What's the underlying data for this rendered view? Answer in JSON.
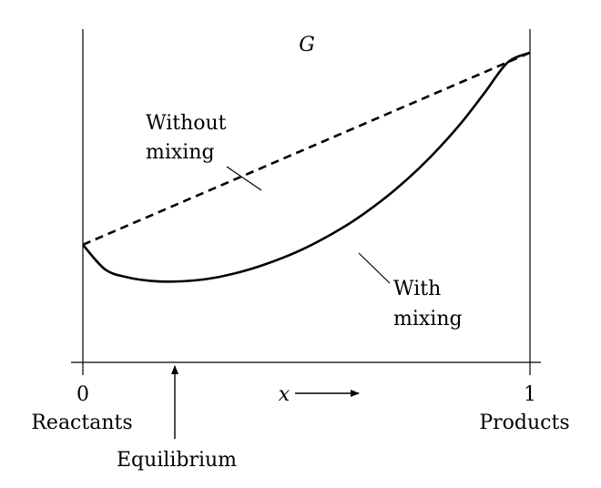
{
  "chart_data": {
    "type": "line",
    "title": "",
    "ylabel": "G",
    "xlabel": "x",
    "xlim": [
      0,
      1
    ],
    "ylim": [
      -0.1,
      0.75
    ],
    "x_ticks": [
      {
        "value": 0,
        "label": "0",
        "sublabel": "Reactants"
      },
      {
        "value": 1,
        "label": "1",
        "sublabel": "Products"
      }
    ],
    "series": [
      {
        "name": "Without mixing",
        "style": "dashed",
        "x": [
          0,
          1
        ],
        "y": [
          0.2,
          0.69
        ]
      },
      {
        "name": "With mixing",
        "style": "solid",
        "x": [
          0,
          0.05,
          0.1,
          0.15,
          0.2,
          0.25,
          0.3,
          0.35,
          0.4,
          0.45,
          0.5,
          0.55,
          0.6,
          0.65,
          0.7,
          0.75,
          0.8,
          0.85,
          0.9,
          0.95,
          1
        ],
        "y": [
          0.2,
          0.137,
          0.117,
          0.108,
          0.106,
          0.109,
          0.117,
          0.13,
          0.147,
          0.168,
          0.193,
          0.223,
          0.257,
          0.297,
          0.342,
          0.393,
          0.451,
          0.516,
          0.59,
          0.665,
          0.69
        ]
      }
    ],
    "annotations": {
      "equilibrium": {
        "x": 0.2,
        "label": "Equilibrium"
      },
      "without_mixing": {
        "line1": "Without",
        "line2": "mixing"
      },
      "with_mixing": {
        "line1": "With",
        "line2": "mixing"
      }
    },
    "grid": false,
    "legend": "none"
  }
}
